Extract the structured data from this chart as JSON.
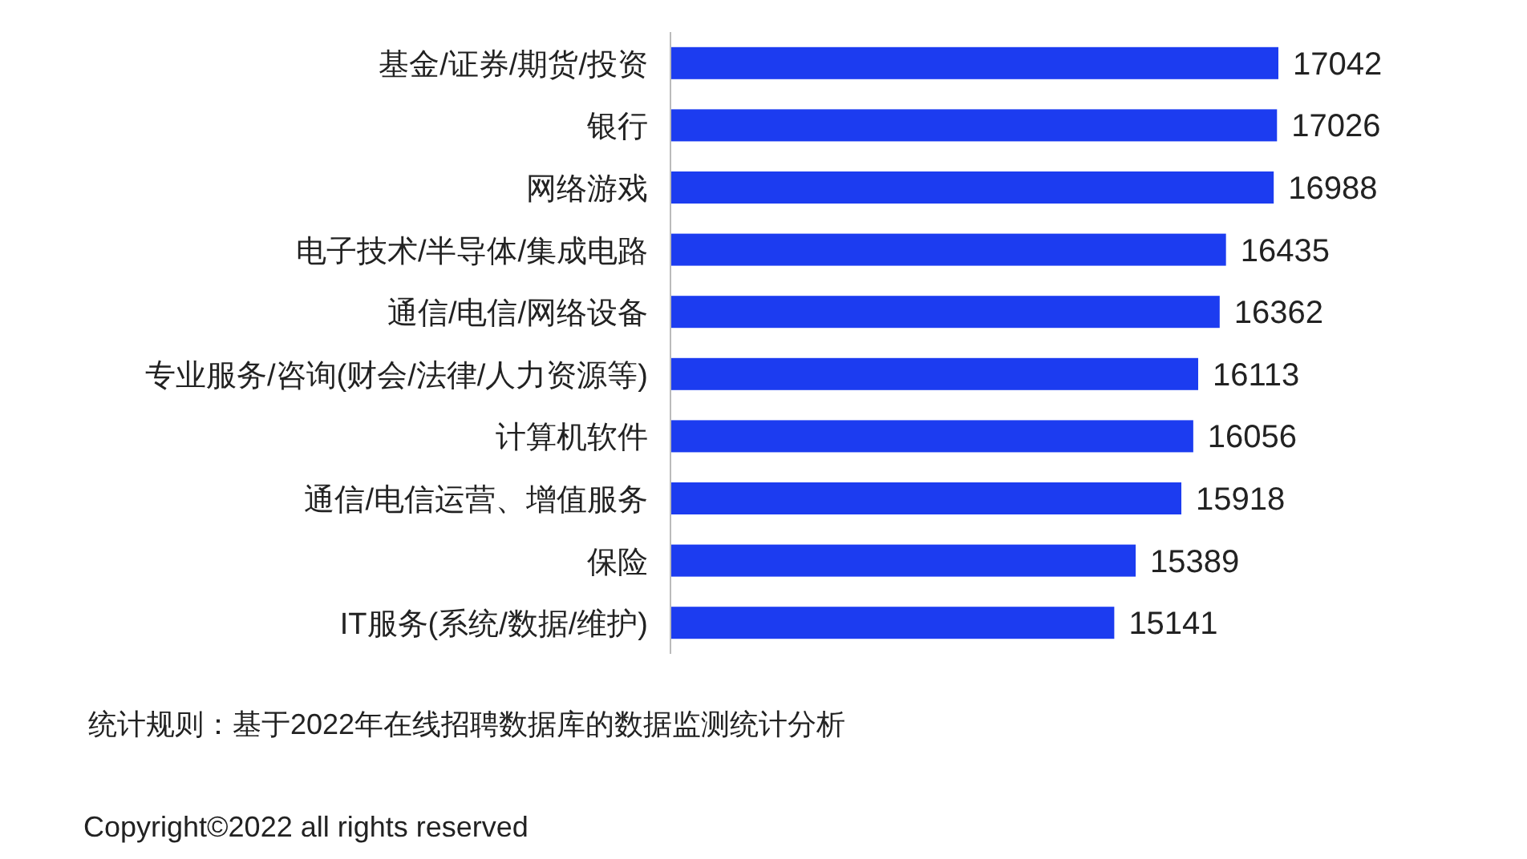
{
  "chart_data": {
    "type": "bar",
    "orientation": "horizontal",
    "categories": [
      "基金/证券/期货/投资",
      "银行",
      "网络游戏",
      "电子技术/半导体/集成电路",
      "通信/电信/网络设备",
      "专业服务/咨询(财会/法律/人力资源等)",
      "计算机软件",
      "通信/电信运营、增值服务",
      "保险",
      "IT服务(系统/数据/维护)"
    ],
    "values": [
      17042,
      17026,
      16988,
      16435,
      16362,
      16113,
      16056,
      15918,
      15389,
      15141
    ],
    "color": "#1c3cf0",
    "xlim": [
      10000,
      17042
    ],
    "tick_labels": "y",
    "data_labels": true,
    "annotations": [
      "统计规则：基于2022年在线招聘数据库的数据监测统计分析",
      "Copyright©2022 all rights reserved"
    ]
  }
}
